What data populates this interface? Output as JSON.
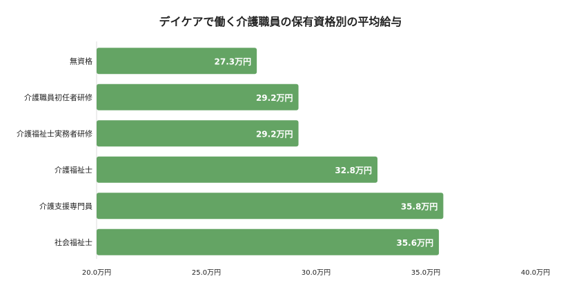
{
  "chart_data": {
    "type": "bar",
    "orientation": "horizontal",
    "title": "デイケアで働く介護職員の保有資格別の平均給与",
    "categories": [
      "無資格",
      "介護職員初任者研修",
      "介護福祉士実務者研修",
      "介護福祉士",
      "介護支援専門員",
      "社会福祉士"
    ],
    "values": [
      27.3,
      29.2,
      29.2,
      32.8,
      35.8,
      35.6
    ],
    "value_labels": [
      "27.3万円",
      "29.2万円",
      "29.2万円",
      "32.8万円",
      "35.8万円",
      "35.6万円"
    ],
    "xlim": [
      20.0,
      40.0
    ],
    "x_ticks": [
      20.0,
      25.0,
      30.0,
      35.0,
      40.0
    ],
    "x_tick_labels": [
      "20.0万円",
      "25.0万円",
      "30.0万円",
      "35.0万円",
      "40.0万円"
    ],
    "bar_color": "#64a464",
    "grid": false,
    "legend": "none"
  }
}
